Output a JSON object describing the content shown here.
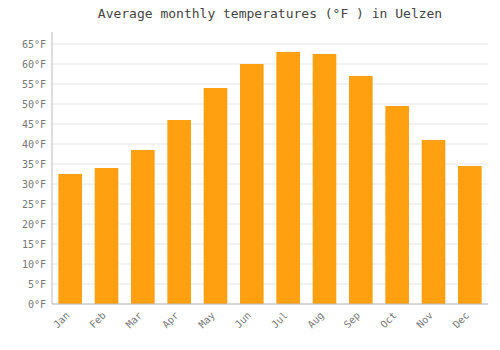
{
  "chart_data": {
    "type": "bar",
    "title": "Average monthly temperatures (°F ) in Uelzen",
    "categories": [
      "Jan",
      "Feb",
      "Mar",
      "Apr",
      "May",
      "Jun",
      "Jul",
      "Aug",
      "Sep",
      "Oct",
      "Nov",
      "Dec"
    ],
    "values": [
      32.5,
      34.0,
      38.5,
      46.0,
      54.0,
      60.0,
      63.0,
      62.5,
      57.0,
      49.5,
      41.0,
      34.5
    ],
    "color": "#FFA010",
    "ylim": [
      0,
      68
    ],
    "yticks": [
      {
        "value": 0,
        "label": "0°F"
      },
      {
        "value": 5,
        "label": "5°F"
      },
      {
        "value": 10,
        "label": "10°F"
      },
      {
        "value": 15,
        "label": "15°F"
      },
      {
        "value": 20,
        "label": "20°F"
      },
      {
        "value": 25,
        "label": "25°F"
      },
      {
        "value": 30,
        "label": "30°F"
      },
      {
        "value": 35,
        "label": "35°F"
      },
      {
        "value": 40,
        "label": "40°F"
      },
      {
        "value": 45,
        "label": "45°F"
      },
      {
        "value": 50,
        "label": "50°F"
      },
      {
        "value": 55,
        "label": "55°F"
      },
      {
        "value": 60,
        "label": "60°F"
      },
      {
        "value": 65,
        "label": "65°F"
      }
    ],
    "grid": true
  }
}
